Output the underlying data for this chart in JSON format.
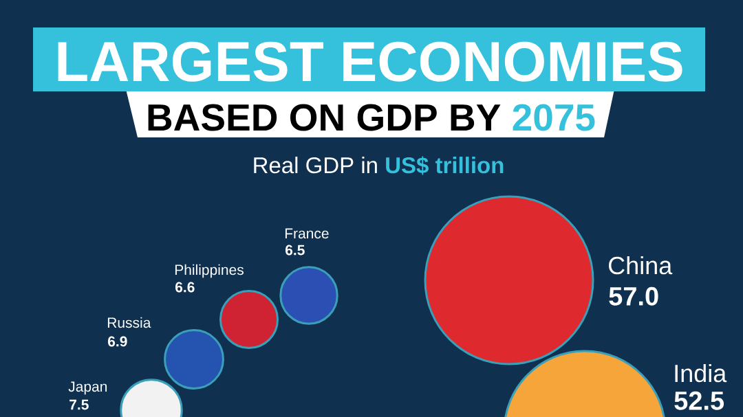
{
  "chart_data": {
    "type": "other",
    "title": "LARGEST ECONOMIES",
    "subtitle": "BASED ON GDP BY 2075",
    "annotations": [
      "Real GDP in **US$ trillion**"
    ],
    "categories": [
      "China",
      "India",
      "Japan",
      "Russia",
      "Philippines",
      "France"
    ],
    "values": [
      57.0,
      52.5,
      7.5,
      6.9,
      6.6,
      6.5
    ],
    "value_labels": [
      "57.0",
      "52.5",
      "7.5",
      "6.9",
      "6.6",
      "6.5"
    ],
    "colors": [
      "#de2a2f",
      "#f5a53a",
      "#f2f2f2",
      "#2553b0",
      "#cf2233",
      "#2b4fb2"
    ]
  }
}
